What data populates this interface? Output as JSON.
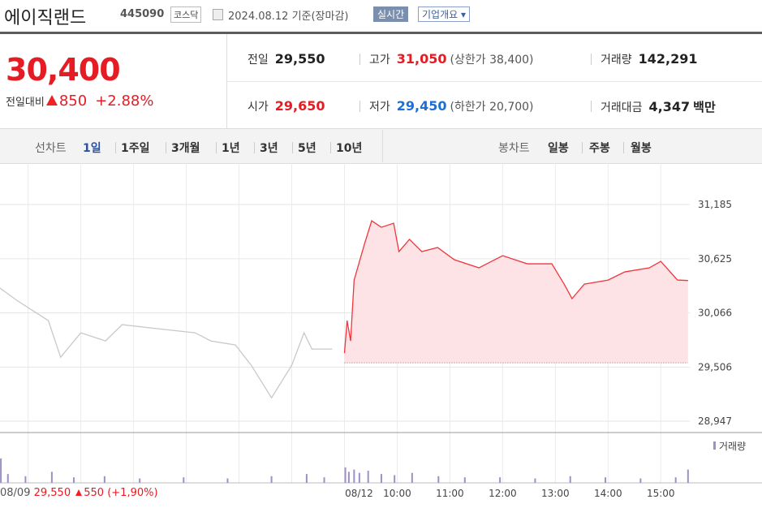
{
  "header": {
    "title": "에이직랜드",
    "code": "445090",
    "market": "코스닥",
    "date": "2024.08.12 기준(장마감)",
    "realtime": "실시간",
    "company": "기업개요"
  },
  "price": {
    "current": "30,400",
    "change_label": "전일대비",
    "change": "850",
    "change_pct": "+2.88%"
  },
  "stats": [
    {
      "label": "전일",
      "value": "29,550"
    },
    {
      "label": "고가",
      "value": "31,050",
      "note": "(상한가 38,400)"
    },
    {
      "label": "거래량",
      "value": "142,291"
    },
    {
      "label": "시가",
      "value": "29,650"
    },
    {
      "label": "저가",
      "value": "29,450",
      "note": "(하한가 20,700)"
    },
    {
      "label": "거래대금",
      "value": "4,347",
      "unit": "백만"
    }
  ],
  "tabs": {
    "line_label": "선차트",
    "periods": [
      "1일",
      "1주일",
      "3개월",
      "1년",
      "3년",
      "5년",
      "10년"
    ],
    "candle_label": "봉차트",
    "candles": [
      "일봉",
      "주봉",
      "월봉"
    ]
  },
  "prev": {
    "date": "08/09",
    "price": "29,550",
    "change": "550",
    "pct": "(+1,90%)"
  },
  "chart_data": {
    "type": "line",
    "xlim": [
      11,
      796
    ],
    "ylim": [
      28830,
      31621
    ],
    "yticks": [
      {
        "value": 31185,
        "label": "31,185"
      },
      {
        "value": 30625,
        "label": "30,625"
      },
      {
        "value": 30066,
        "label": "30,066"
      },
      {
        "value": 29506,
        "label": "29,506"
      },
      {
        "value": 28947,
        "label": "28,947"
      }
    ],
    "xticks": [
      {
        "value": 403,
        "label": "08/12"
      },
      {
        "value": 463,
        "label": "10:00"
      },
      {
        "value": 523,
        "label": "11:00"
      },
      {
        "value": 583,
        "label": "12:00"
      },
      {
        "value": 643,
        "label": "13:00"
      },
      {
        "value": 703,
        "label": "14:00"
      },
      {
        "value": 763,
        "label": "15:00"
      }
    ],
    "xgrid": [
      43,
      103,
      163,
      223,
      283,
      343
    ],
    "grid": true,
    "baseline": 29550,
    "series": [
      {
        "name": "08/09",
        "color": "#c8c8cc",
        "x": [
          11,
          30,
          66,
          80,
          103,
          131,
          150,
          191,
          233,
          251,
          279,
          297,
          320,
          343,
          357,
          366,
          389
        ],
        "values": [
          30322,
          30196,
          29986,
          29608,
          29860,
          29776,
          29944,
          29902,
          29860,
          29776,
          29734,
          29524,
          29189,
          29524,
          29860,
          29692,
          29692
        ]
      },
      {
        "name": "08/12",
        "color": "#f0353c",
        "fill": "#fde3e5",
        "x": [
          403,
          406,
          410,
          414,
          426,
          434,
          445,
          459,
          465,
          477,
          491,
          509,
          528,
          556,
          583,
          611,
          639,
          653,
          662,
          676,
          703,
          722,
          750,
          763,
          782,
          794
        ],
        "values": [
          29650,
          29986,
          29776,
          30405,
          30783,
          31017,
          30950,
          30992,
          30699,
          30825,
          30699,
          30741,
          30615,
          30531,
          30657,
          30573,
          30573,
          30363,
          30213,
          30363,
          30405,
          30489,
          30531,
          30598,
          30405,
          30400
        ]
      }
    ],
    "volume": {
      "name": "거래량",
      "color": "#9e8fc6",
      "x": [
        12,
        20,
        40,
        70,
        95,
        130,
        170,
        220,
        270,
        320,
        360,
        380,
        404,
        408,
        414,
        420,
        430,
        445,
        460,
        480,
        510,
        540,
        580,
        620,
        660,
        700,
        740,
        780,
        794
      ],
      "values": [
        22,
        8,
        6,
        10,
        5,
        6,
        4,
        5,
        4,
        6,
        8,
        5,
        14,
        10,
        12,
        9,
        11,
        8,
        7,
        9,
        6,
        5,
        5,
        4,
        6,
        5,
        4,
        5,
        12
      ]
    }
  }
}
